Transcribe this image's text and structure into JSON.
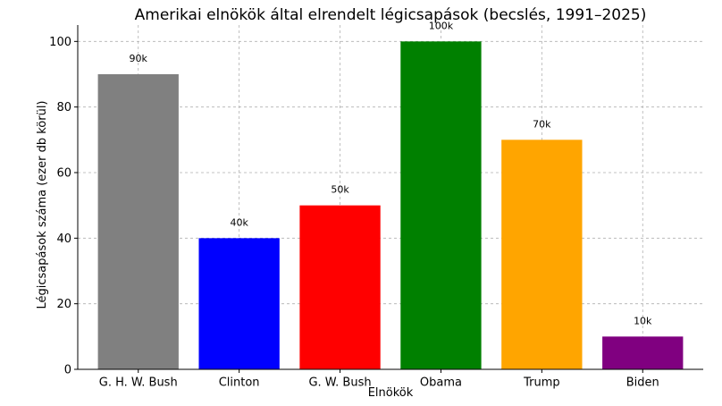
{
  "chart_data": {
    "type": "bar",
    "title": "Amerikai elnökök által elrendelt légicsapások (becslés, 1991–2025)",
    "xlabel": "Elnökök",
    "ylabel": "Légicsapások száma (ezer db körül)",
    "categories": [
      "G. H. W. Bush",
      "Clinton",
      "G. W. Bush",
      "Obama",
      "Trump",
      "Biden"
    ],
    "values": [
      90,
      40,
      50,
      100,
      70,
      10
    ],
    "data_labels": [
      "90k",
      "40k",
      "50k",
      "100k",
      "70k",
      "10k"
    ],
    "colors": [
      "#808080",
      "#0000ff",
      "#ff0000",
      "#008000",
      "#ffa500",
      "#800080"
    ],
    "ylim": [
      0,
      105
    ],
    "yticks": [
      0,
      20,
      40,
      60,
      80,
      100
    ],
    "grid": true,
    "legend": "none"
  }
}
